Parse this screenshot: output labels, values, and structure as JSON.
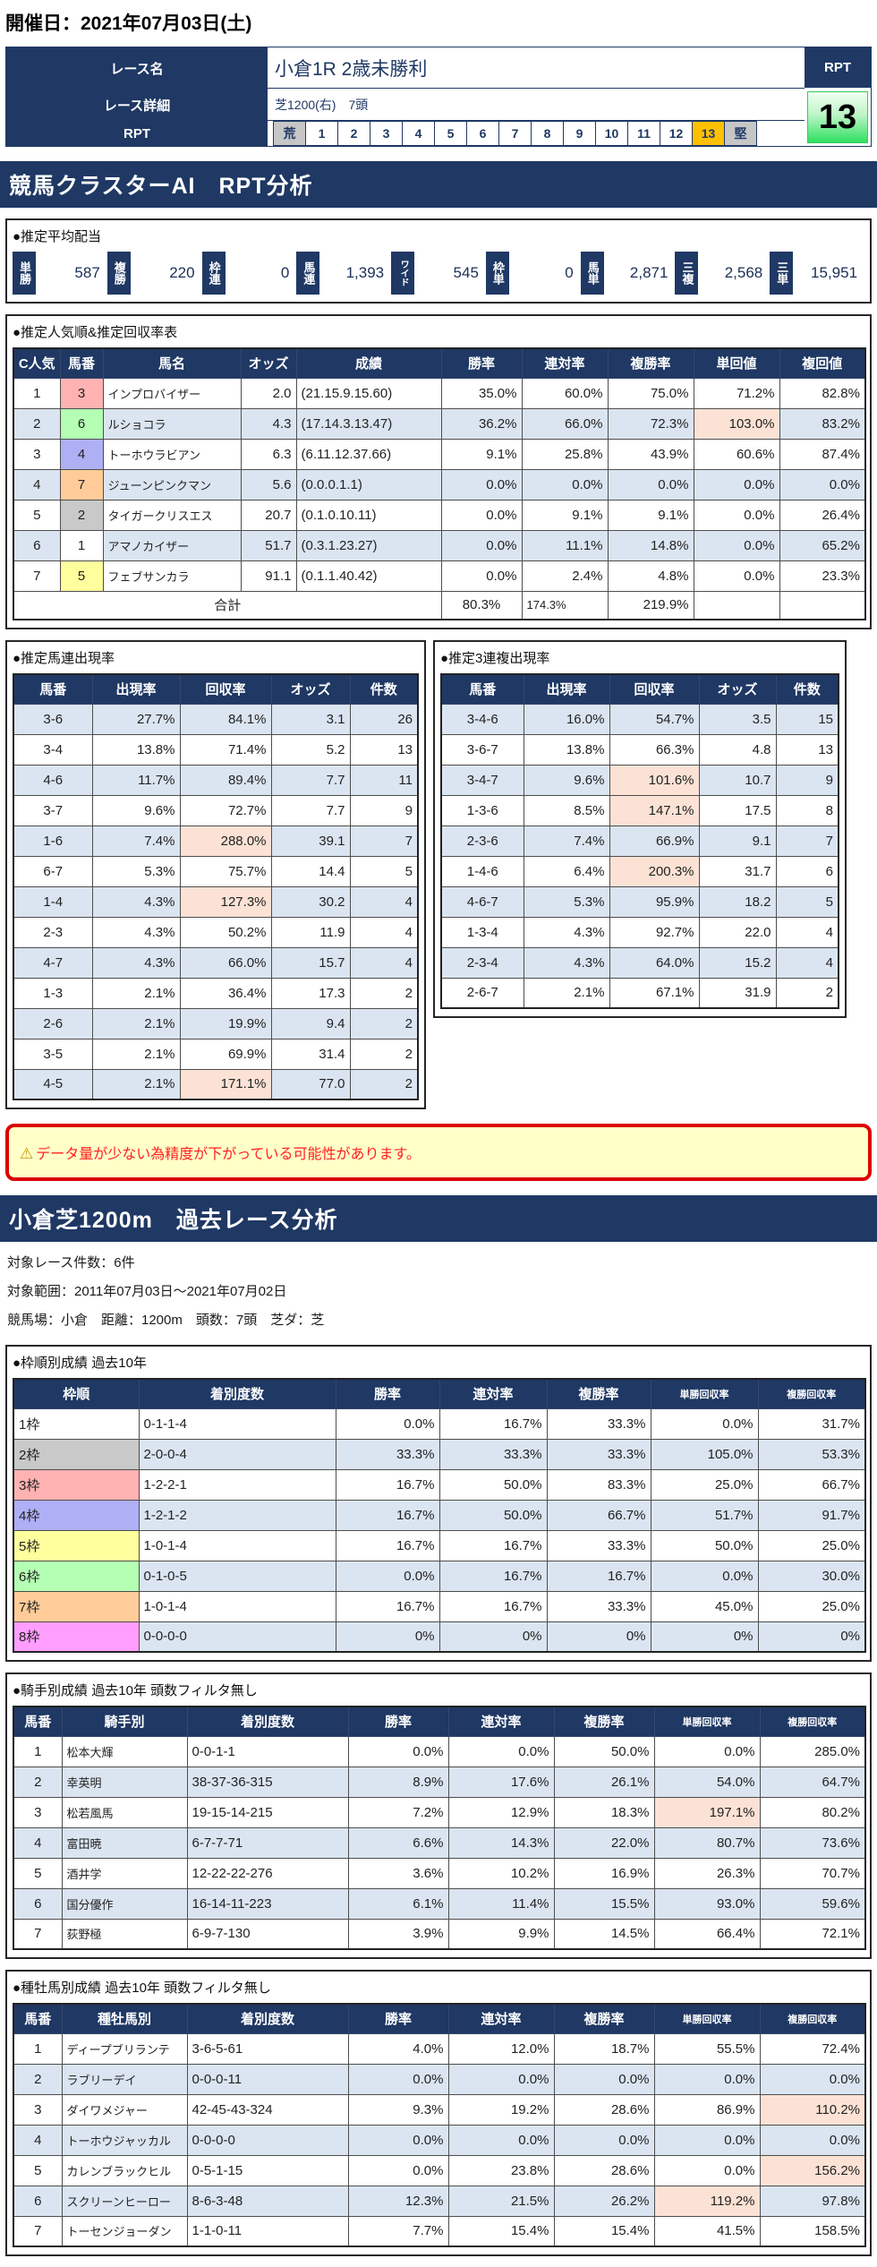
{
  "colors": {
    "navy": "#1F3864",
    "row_alt": "#DBE5F1",
    "highlight": "#FBE2D5",
    "scale_active_bg": "#FFC000",
    "scale_end_bg": "#C6C6C6",
    "warning_bg": "#FFFFC8",
    "warning_border": "#DD0000",
    "warning_text": "#FF2020",
    "rpt_green_top": "#F2FFF2",
    "rpt_green_bottom": "#2FE060",
    "frames": {
      "1": "#FFFFFF",
      "2": "#C9C9C9",
      "3": "#FFB2B2",
      "4": "#AFAFF5",
      "5": "#FFFF9E",
      "6": "#B4FFB4",
      "7": "#FFCC99",
      "8": "#FF9EFF"
    }
  },
  "header": {
    "date_title": "開催日：2021年07月03日(土)"
  },
  "race_info": {
    "labels": {
      "race_name": "レース名",
      "race_detail": "レース詳細",
      "rpt": "RPT"
    },
    "race_name": "小倉1R 2歳未勝利",
    "race_detail": "芝1200(右)　7頭",
    "rpt_header": "RPT",
    "rpt_value": "13",
    "scale": [
      "荒",
      "1",
      "2",
      "3",
      "4",
      "5",
      "6",
      "7",
      "8",
      "9",
      "10",
      "11",
      "12",
      "13",
      "堅"
    ],
    "scale_active": "13",
    "scale_ends": [
      "荒",
      "堅"
    ]
  },
  "ai_section": {
    "title": "競馬クラスターAI　RPT分析",
    "payout": {
      "title": "●推定平均配当",
      "items": [
        {
          "label": "単勝",
          "value": "587"
        },
        {
          "label": "複勝",
          "value": "220"
        },
        {
          "label": "枠連",
          "value": "0"
        },
        {
          "label": "馬連",
          "value": "1,393"
        },
        {
          "label": "ワイド",
          "value": "545"
        },
        {
          "label": "枠単",
          "value": "0"
        },
        {
          "label": "馬単",
          "value": "2,871"
        },
        {
          "label": "三複",
          "value": "2,568"
        },
        {
          "label": "三単",
          "value": "15,951"
        }
      ]
    },
    "popularity": {
      "title": "●推定人気順&推定回収率表",
      "headers": [
        "C人気",
        "馬番",
        "馬名",
        "オッズ",
        "成績",
        "勝率",
        "連対率",
        "複勝率",
        "単回値",
        "複回値"
      ],
      "rows": [
        {
          "cells": [
            "1",
            "3",
            "インプロバイザー",
            "2.0",
            "(21.15.9.15.60)",
            "35.0%",
            "60.0%",
            "75.0%",
            "71.2%",
            "82.8%"
          ],
          "frame": "3"
        },
        {
          "cells": [
            "2",
            "6",
            "ルショコラ",
            "4.3",
            "(17.14.3.13.47)",
            "36.2%",
            "66.0%",
            "72.3%",
            "103.0%",
            "83.2%"
          ],
          "frame": "6",
          "hl": [
            8
          ]
        },
        {
          "cells": [
            "3",
            "4",
            "トーホウラビアン",
            "6.3",
            "(6.11.12.37.66)",
            "9.1%",
            "25.8%",
            "43.9%",
            "60.6%",
            "87.4%"
          ],
          "frame": "4"
        },
        {
          "cells": [
            "4",
            "7",
            "ジューンピンクマン",
            "5.6",
            "(0.0.0.1.1)",
            "0.0%",
            "0.0%",
            "0.0%",
            "0.0%",
            "0.0%"
          ],
          "frame": "7"
        },
        {
          "cells": [
            "5",
            "2",
            "タイガークリスエス",
            "20.7",
            "(0.1.0.10.11)",
            "0.0%",
            "9.1%",
            "9.1%",
            "0.0%",
            "26.4%"
          ],
          "frame": "2"
        },
        {
          "cells": [
            "6",
            "1",
            "アマノカイザー",
            "51.7",
            "(0.3.1.23.27)",
            "0.0%",
            "11.1%",
            "14.8%",
            "0.0%",
            "65.2%"
          ],
          "frame": "1"
        },
        {
          "cells": [
            "7",
            "5",
            "フェブサンカラ",
            "91.1",
            "(0.1.1.40.42)",
            "0.0%",
            "2.4%",
            "4.8%",
            "0.0%",
            "23.3%"
          ],
          "frame": "5"
        }
      ],
      "total_label": "合計",
      "totals": [
        "80.3%",
        "174.3%",
        "219.9%"
      ]
    },
    "umaren": {
      "title": "●推定馬連出現率",
      "headers": [
        "馬番",
        "出現率",
        "回収率",
        "オッズ",
        "件数"
      ],
      "rows": [
        {
          "cells": [
            "3-6",
            "27.7%",
            "84.1%",
            "3.1",
            "26"
          ]
        },
        {
          "cells": [
            "3-4",
            "13.8%",
            "71.4%",
            "5.2",
            "13"
          ]
        },
        {
          "cells": [
            "4-6",
            "11.7%",
            "89.4%",
            "7.7",
            "11"
          ]
        },
        {
          "cells": [
            "3-7",
            "9.6%",
            "72.7%",
            "7.7",
            "9"
          ]
        },
        {
          "cells": [
            "1-6",
            "7.4%",
            "288.0%",
            "39.1",
            "7"
          ],
          "hl": [
            2
          ]
        },
        {
          "cells": [
            "6-7",
            "5.3%",
            "75.7%",
            "14.4",
            "5"
          ]
        },
        {
          "cells": [
            "1-4",
            "4.3%",
            "127.3%",
            "30.2",
            "4"
          ],
          "hl": [
            2
          ]
        },
        {
          "cells": [
            "2-3",
            "4.3%",
            "50.2%",
            "11.9",
            "4"
          ]
        },
        {
          "cells": [
            "4-7",
            "4.3%",
            "66.0%",
            "15.7",
            "4"
          ]
        },
        {
          "cells": [
            "1-3",
            "2.1%",
            "36.4%",
            "17.3",
            "2"
          ]
        },
        {
          "cells": [
            "2-6",
            "2.1%",
            "19.9%",
            "9.4",
            "2"
          ]
        },
        {
          "cells": [
            "3-5",
            "2.1%",
            "69.9%",
            "31.4",
            "2"
          ]
        },
        {
          "cells": [
            "4-5",
            "2.1%",
            "171.1%",
            "77.0",
            "2"
          ],
          "hl": [
            2
          ]
        }
      ]
    },
    "sanrenpuku": {
      "title": "●推定3連複出現率",
      "headers": [
        "馬番",
        "出現率",
        "回収率",
        "オッズ",
        "件数"
      ],
      "rows": [
        {
          "cells": [
            "3-4-6",
            "16.0%",
            "54.7%",
            "3.5",
            "15"
          ]
        },
        {
          "cells": [
            "3-6-7",
            "13.8%",
            "66.3%",
            "4.8",
            "13"
          ]
        },
        {
          "cells": [
            "3-4-7",
            "9.6%",
            "101.6%",
            "10.7",
            "9"
          ],
          "hl": [
            2
          ]
        },
        {
          "cells": [
            "1-3-6",
            "8.5%",
            "147.1%",
            "17.5",
            "8"
          ],
          "hl": [
            2
          ]
        },
        {
          "cells": [
            "2-3-6",
            "7.4%",
            "66.9%",
            "9.1",
            "7"
          ]
        },
        {
          "cells": [
            "1-4-6",
            "6.4%",
            "200.3%",
            "31.7",
            "6"
          ],
          "hl": [
            2
          ]
        },
        {
          "cells": [
            "4-6-7",
            "5.3%",
            "95.9%",
            "18.2",
            "5"
          ]
        },
        {
          "cells": [
            "1-3-4",
            "4.3%",
            "92.7%",
            "22.0",
            "4"
          ]
        },
        {
          "cells": [
            "2-3-4",
            "4.3%",
            "64.0%",
            "15.2",
            "4"
          ]
        },
        {
          "cells": [
            "2-6-7",
            "2.1%",
            "67.1%",
            "31.9",
            "2"
          ]
        }
      ]
    },
    "warning": "データ量が少ない為精度が下がっている可能性があります。"
  },
  "past_section": {
    "title": "小倉芝1200m　過去レース分析",
    "info_lines": [
      "対象レース件数：6件",
      "対象範囲：2011年07月03日～2021年07月02日",
      "競馬場：小倉　距離：1200m　頭数：7頭　芝ダ：芝"
    ],
    "waku": {
      "title": "●枠順別成績 過去10年",
      "headers": [
        "枠順",
        "着別度数",
        "勝率",
        "連対率",
        "複勝率",
        "単勝回収率",
        "複勝回収率"
      ],
      "rows": [
        {
          "cells": [
            "1枠",
            "0-1-1-4",
            "0.0%",
            "16.7%",
            "33.3%",
            "0.0%",
            "31.7%"
          ],
          "frame": "1"
        },
        {
          "cells": [
            "2枠",
            "2-0-0-4",
            "33.3%",
            "33.3%",
            "33.3%",
            "105.0%",
            "53.3%"
          ],
          "frame": "2"
        },
        {
          "cells": [
            "3枠",
            "1-2-2-1",
            "16.7%",
            "50.0%",
            "83.3%",
            "25.0%",
            "66.7%"
          ],
          "frame": "3"
        },
        {
          "cells": [
            "4枠",
            "1-2-1-2",
            "16.7%",
            "50.0%",
            "66.7%",
            "51.7%",
            "91.7%"
          ],
          "frame": "4"
        },
        {
          "cells": [
            "5枠",
            "1-0-1-4",
            "16.7%",
            "16.7%",
            "33.3%",
            "50.0%",
            "25.0%"
          ],
          "frame": "5"
        },
        {
          "cells": [
            "6枠",
            "0-1-0-5",
            "0.0%",
            "16.7%",
            "16.7%",
            "0.0%",
            "30.0%"
          ],
          "frame": "6"
        },
        {
          "cells": [
            "7枠",
            "1-0-1-4",
            "16.7%",
            "16.7%",
            "33.3%",
            "45.0%",
            "25.0%"
          ],
          "frame": "7"
        },
        {
          "cells": [
            "8枠",
            "0-0-0-0",
            "0%",
            "0%",
            "0%",
            "0%",
            "0%"
          ],
          "frame": "8"
        }
      ]
    },
    "jockey": {
      "title": "●騎手別成績 過去10年 頭数フィルタ無し",
      "headers": [
        "馬番",
        "騎手別",
        "着別度数",
        "勝率",
        "連対率",
        "複勝率",
        "単勝回収率",
        "複勝回収率"
      ],
      "rows": [
        {
          "cells": [
            "1",
            "松本大輝",
            "0-0-1-1",
            "0.0%",
            "0.0%",
            "50.0%",
            "0.0%",
            "285.0%"
          ]
        },
        {
          "cells": [
            "2",
            "幸英明",
            "38-37-36-315",
            "8.9%",
            "17.6%",
            "26.1%",
            "54.0%",
            "64.7%"
          ]
        },
        {
          "cells": [
            "3",
            "松若風馬",
            "19-15-14-215",
            "7.2%",
            "12.9%",
            "18.3%",
            "197.1%",
            "80.2%"
          ],
          "hl": [
            6
          ]
        },
        {
          "cells": [
            "4",
            "富田暁",
            "6-7-7-71",
            "6.6%",
            "14.3%",
            "22.0%",
            "80.7%",
            "73.6%"
          ]
        },
        {
          "cells": [
            "5",
            "酒井学",
            "12-22-22-276",
            "3.6%",
            "10.2%",
            "16.9%",
            "26.3%",
            "70.7%"
          ]
        },
        {
          "cells": [
            "6",
            "国分優作",
            "16-14-11-223",
            "6.1%",
            "11.4%",
            "15.5%",
            "93.0%",
            "59.6%"
          ]
        },
        {
          "cells": [
            "7",
            "荻野極",
            "6-9-7-130",
            "3.9%",
            "9.9%",
            "14.5%",
            "66.4%",
            "72.1%"
          ]
        }
      ]
    },
    "sire": {
      "title": "●種牡馬別成績 過去10年 頭数フィルタ無し",
      "headers": [
        "馬番",
        "種牡馬別",
        "着別度数",
        "勝率",
        "連対率",
        "複勝率",
        "単勝回収率",
        "複勝回収率"
      ],
      "rows": [
        {
          "cells": [
            "1",
            "ディープブリランテ",
            "3-6-5-61",
            "4.0%",
            "12.0%",
            "18.7%",
            "55.5%",
            "72.4%"
          ]
        },
        {
          "cells": [
            "2",
            "ラブリーデイ",
            "0-0-0-11",
            "0.0%",
            "0.0%",
            "0.0%",
            "0.0%",
            "0.0%"
          ]
        },
        {
          "cells": [
            "3",
            "ダイワメジャー",
            "42-45-43-324",
            "9.3%",
            "19.2%",
            "28.6%",
            "86.9%",
            "110.2%"
          ],
          "hl": [
            7
          ]
        },
        {
          "cells": [
            "4",
            "トーホウジャッカル",
            "0-0-0-0",
            "0.0%",
            "0.0%",
            "0.0%",
            "0.0%",
            "0.0%"
          ]
        },
        {
          "cells": [
            "5",
            "カレンブラックヒル",
            "0-5-1-15",
            "0.0%",
            "23.8%",
            "28.6%",
            "0.0%",
            "156.2%"
          ],
          "hl": [
            7
          ]
        },
        {
          "cells": [
            "6",
            "スクリーンヒーロー",
            "8-6-3-48",
            "12.3%",
            "21.5%",
            "26.2%",
            "119.2%",
            "97.8%"
          ],
          "hl": [
            6
          ]
        },
        {
          "cells": [
            "7",
            "トーセンジョーダン",
            "1-1-0-11",
            "7.7%",
            "15.4%",
            "15.4%",
            "41.5%",
            "158.5%"
          ]
        }
      ]
    }
  }
}
